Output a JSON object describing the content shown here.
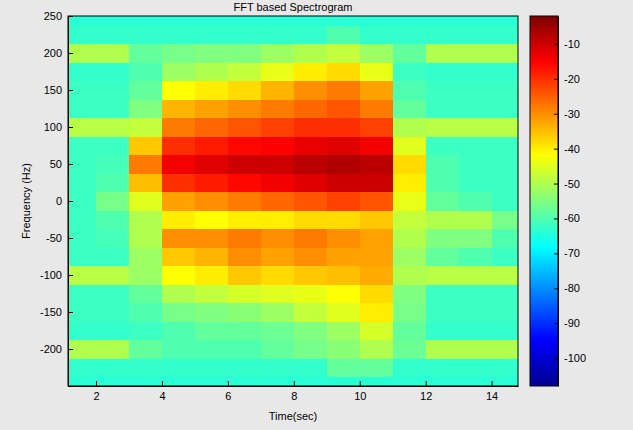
{
  "chart_data": {
    "type": "heatmap",
    "title": "FFT based Spectrogram",
    "x_label": "Time(sec)",
    "y_label": "Frequency (Hz)",
    "xlim": [
      1.15,
      14.8
    ],
    "ylim": [
      -250,
      250
    ],
    "xticks": [
      2,
      4,
      6,
      8,
      10,
      12,
      14
    ],
    "yticks": [
      -200,
      -150,
      -100,
      -50,
      0,
      50,
      100,
      150,
      200,
      250
    ],
    "x_edges": [
      1.15,
      2,
      3,
      4,
      5,
      6,
      7,
      8,
      9,
      10,
      11,
      12,
      13,
      14,
      14.8
    ],
    "y_edges": [
      -250,
      -237.5,
      -212.5,
      -187.5,
      -162.5,
      -137.5,
      -112.5,
      -87.5,
      -62.5,
      -37.5,
      -12.5,
      12.5,
      37.5,
      62.5,
      87.5,
      112.5,
      137.5,
      162.5,
      187.5,
      212.5,
      237.5,
      250
    ],
    "cells": [
      [
        -64,
        -64,
        -64,
        -64,
        -64,
        -64,
        -64,
        -64,
        -64,
        -64,
        -64,
        -64,
        -64,
        -64
      ],
      [
        -63,
        -63,
        -63,
        -63,
        -63,
        -63,
        -63,
        -63,
        -58,
        -58,
        -63,
        -63,
        -63,
        -63
      ],
      [
        -50,
        -50,
        -58,
        -60,
        -60,
        -60,
        -58,
        -56,
        -54,
        -50,
        -57,
        -50,
        -50,
        -50
      ],
      [
        -63,
        -63,
        -62,
        -60,
        -58,
        -58,
        -57,
        -55,
        -52,
        -46,
        -58,
        -63,
        -63,
        -63
      ],
      [
        -62,
        -62,
        -60,
        -56,
        -55,
        -54,
        -52,
        -48,
        -45,
        -40,
        -56,
        -62,
        -62,
        -62
      ],
      [
        -62,
        -62,
        -58,
        -50,
        -48,
        -46,
        -45,
        -44,
        -42,
        -38,
        -55,
        -62,
        -62,
        -62
      ],
      [
        -49,
        -49,
        -52,
        -42,
        -40,
        -36,
        -38,
        -36,
        -35,
        -33,
        -50,
        -49,
        -49,
        -49
      ],
      [
        -62,
        -62,
        -52,
        -36,
        -34,
        -30,
        -32,
        -30,
        -32,
        -32,
        -52,
        -58,
        -60,
        -62
      ],
      [
        -62,
        -61,
        -50,
        -30,
        -30,
        -28,
        -30,
        -28,
        -30,
        -32,
        -50,
        -55,
        -55,
        -60
      ],
      [
        -62,
        -60,
        -50,
        -40,
        -42,
        -40,
        -40,
        -38,
        -38,
        -36,
        -48,
        -50,
        -50,
        -56
      ],
      [
        -62,
        -56,
        -45,
        -32,
        -30,
        -28,
        -26,
        -24,
        -22,
        -24,
        -44,
        -58,
        -60,
        -62
      ],
      [
        -62,
        -60,
        -35,
        -20,
        -18,
        -16,
        -14,
        -12,
        -10,
        -10,
        -40,
        -60,
        -62,
        -62
      ],
      [
        -62,
        -61,
        -28,
        -14,
        -12,
        -10,
        -10,
        -8,
        -7,
        -8,
        -38,
        -60,
        -62,
        -62
      ],
      [
        -62,
        -62,
        -36,
        -20,
        -18,
        -16,
        -15,
        -13,
        -12,
        -14,
        -45,
        -62,
        -62,
        -62
      ],
      [
        -49,
        -49,
        -48,
        -28,
        -26,
        -24,
        -22,
        -20,
        -20,
        -22,
        -50,
        -49,
        -49,
        -49
      ],
      [
        -62,
        -62,
        -55,
        -34,
        -32,
        -30,
        -28,
        -26,
        -24,
        -28,
        -58,
        -62,
        -62,
        -62
      ],
      [
        -62,
        -62,
        -58,
        -42,
        -40,
        -38,
        -34,
        -30,
        -28,
        -32,
        -60,
        -62,
        -62,
        -62
      ],
      [
        -63,
        -63,
        -60,
        -52,
        -50,
        -48,
        -44,
        -40,
        -38,
        -44,
        -62,
        -63,
        -63,
        -63
      ],
      [
        -50,
        -50,
        -58,
        -56,
        -55,
        -55,
        -52,
        -50,
        -48,
        -52,
        -58,
        -50,
        -50,
        -50
      ],
      [
        -63,
        -63,
        -63,
        -63,
        -63,
        -63,
        -63,
        -63,
        -60,
        -63,
        -63,
        -63,
        -63,
        -63
      ],
      [
        -64,
        -64,
        -64,
        -64,
        -64,
        -64,
        -64,
        -64,
        -64,
        -64,
        -64,
        -64,
        -64,
        -64
      ]
    ],
    "colorbar": {
      "range": [
        -108,
        -2
      ],
      "ticks": [
        -100,
        -90,
        -80,
        -70,
        -60,
        -50,
        -40,
        -30,
        -20,
        -10
      ]
    }
  }
}
